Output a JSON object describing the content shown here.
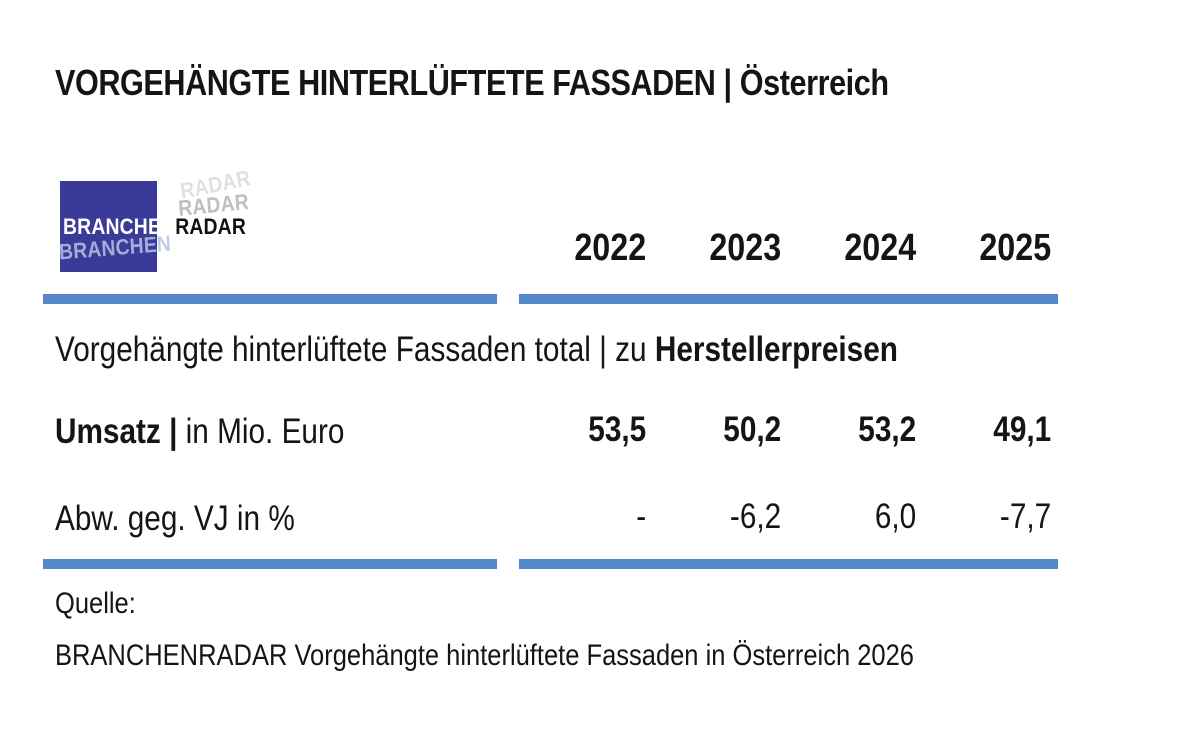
{
  "header": {
    "title": "VORGEHÄNGTE HINTERLÜFTETE FASSADEN | Österreich"
  },
  "logo": {
    "part1": "BRANCHEN",
    "part2": "RADAR",
    "square_color": "#3A3A99"
  },
  "table": {
    "accent_color": "#5588CB",
    "years": [
      "2022",
      "2023",
      "2024",
      "2025"
    ],
    "section": {
      "regular": "Vorgehängte hinterlüftete Fassaden total | zu",
      "bold": "Herstellerpreisen"
    },
    "rows": [
      {
        "label_strong": "Umsatz |",
        "label_rest": "in Mio. Euro",
        "display": [
          "53,5",
          "50,2",
          "53,2",
          "49,1"
        ]
      },
      {
        "label_strong": "",
        "label_rest": "Abw. geg. VJ in %",
        "display": [
          "-",
          "-6,2",
          "6,0",
          "-7,7"
        ]
      }
    ]
  },
  "footer": {
    "label": "Quelle:",
    "text": "BRANCHENRADAR Vorgehängte hinterlüftete Fassaden in Österreich 2026"
  },
  "chart_data": {
    "type": "table",
    "title": "VORGEHÄNGTE HINTERLÜFTETE FASSADEN | Österreich",
    "section": "Vorgehängte hinterlüftete Fassaden total | zu Herstellerpreisen",
    "columns": [
      "2022",
      "2023",
      "2024",
      "2025"
    ],
    "rows": [
      {
        "label": "Umsatz | in Mio. Euro",
        "values": [
          53.5,
          50.2,
          53.2,
          49.1
        ]
      },
      {
        "label": "Abw. geg. VJ in %",
        "values": [
          null,
          -6.2,
          6.0,
          -7.7
        ]
      }
    ],
    "source": "BRANCHENRADAR Vorgehängte hinterlüftete Fassaden in Österreich 2026"
  }
}
